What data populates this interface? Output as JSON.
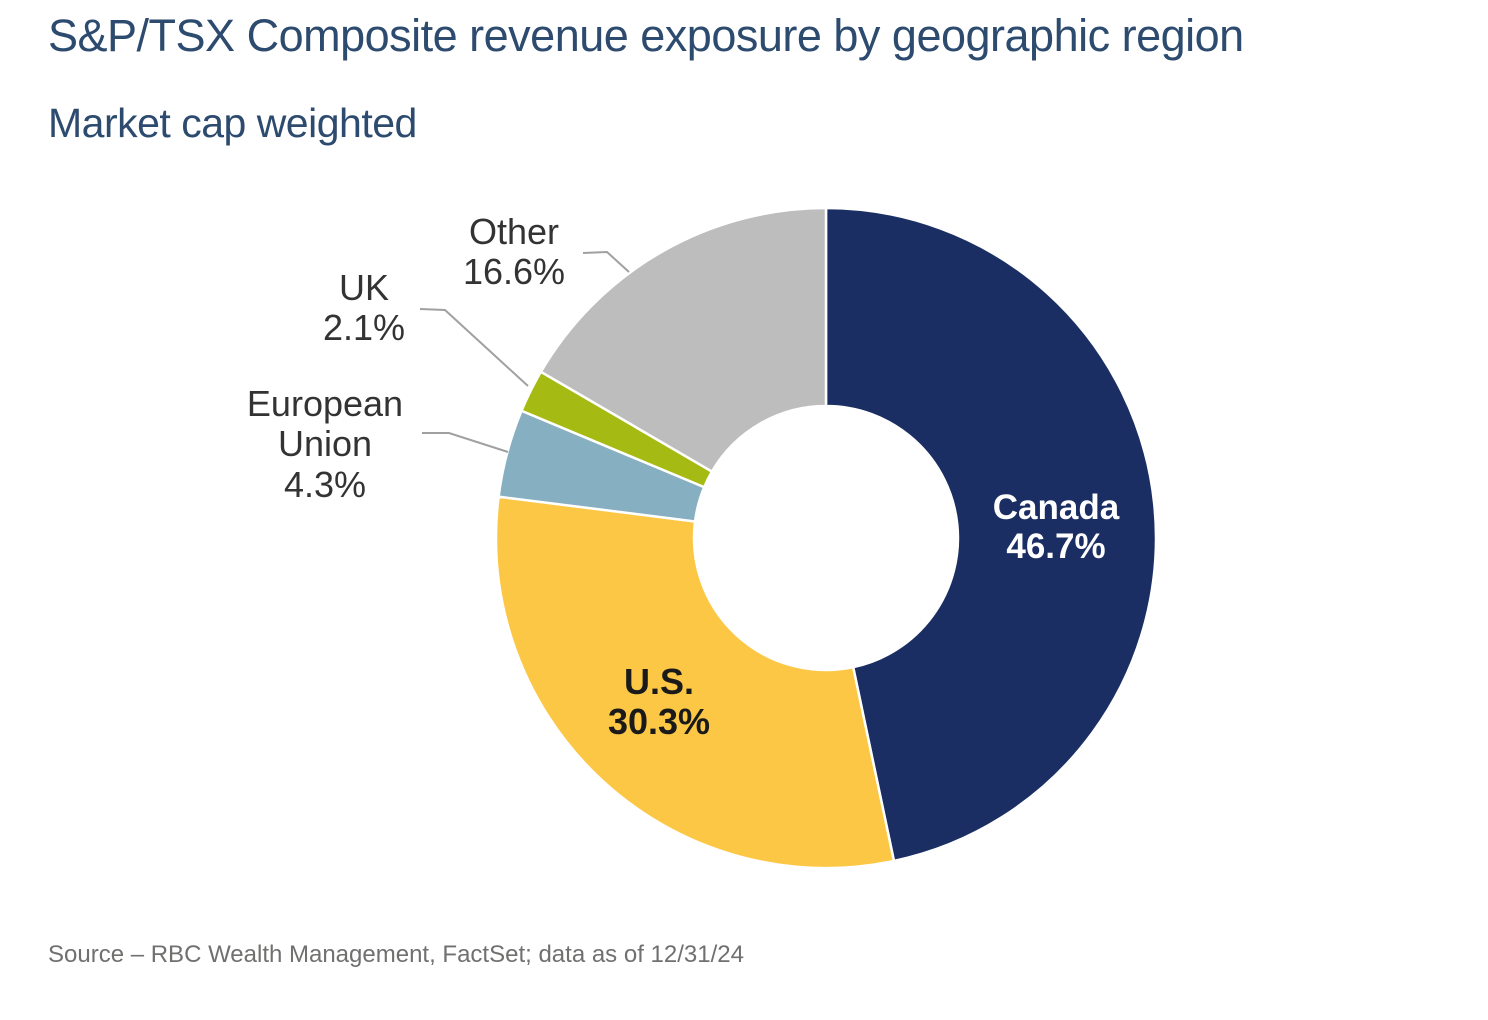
{
  "header": {
    "title": "S&P/TSX Composite revenue exposure by geographic region",
    "subtitle": "Market cap weighted"
  },
  "footer": {
    "source": "Source – RBC Wealth Management, FactSet; data as of 12/31/24"
  },
  "colors": {
    "title_text": "#2d4b6e",
    "outside_label_text": "#333333",
    "inside_label_light": "#ffffff",
    "inside_label_dark": "#1a1a1a",
    "source_text": "#70706f",
    "leader_line": "#a0a0a0",
    "slice_gap_stroke": "#ffffff"
  },
  "chart_data": {
    "type": "pie",
    "subtype": "donut",
    "title": "S&P/TSX Composite revenue exposure by geographic region",
    "subtitle": "Market cap weighted",
    "source": "Source – RBC Wealth Management, FactSet; data as of 12/31/24",
    "units": "percent",
    "start_angle": "top",
    "direction": "clockwise",
    "hole_ratio": 0.4,
    "legend": "none",
    "slices": [
      {
        "label": "Canada",
        "value": 46.7,
        "display": "46.7%",
        "color": "#1b2e63",
        "label_placement": "inside"
      },
      {
        "label": "U.S.",
        "value": 30.3,
        "display": "30.3%",
        "color": "#fcc744",
        "label_placement": "inside"
      },
      {
        "label": "European Union",
        "value": 4.3,
        "display": "4.3%",
        "color": "#87afc2",
        "label_placement": "outside"
      },
      {
        "label": "UK",
        "value": 2.1,
        "display": "2.1%",
        "color": "#a6ba14",
        "label_placement": "outside"
      },
      {
        "label": "Other",
        "value": 16.6,
        "display": "16.6%",
        "color": "#bdbdbd",
        "label_placement": "outside"
      }
    ]
  }
}
